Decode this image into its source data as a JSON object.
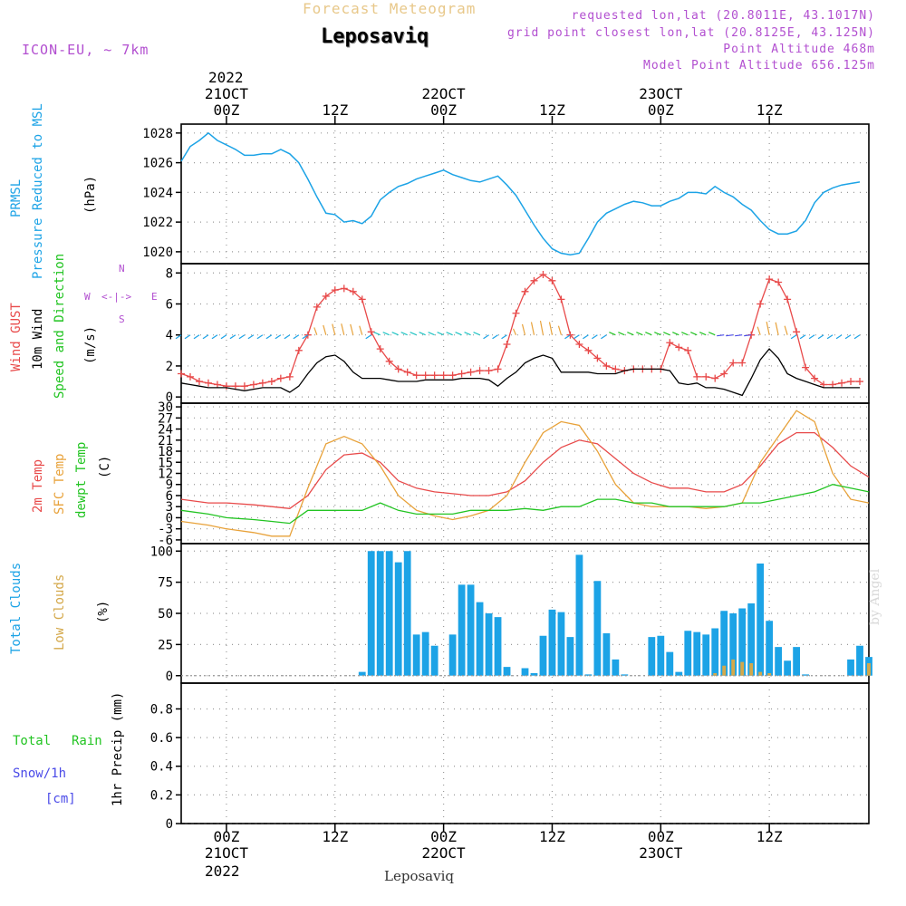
{
  "header": {
    "title_top": "Forecast Meteogram",
    "location": "Leposaviq",
    "model": "ICON-EU, ~ 7km",
    "requested": "requested lon,lat (20.8011E, 43.1017N)",
    "gridpoint": "grid point closest lon,lat (20.8125E, 43.125N)",
    "point_alt": "Point Altitude 468m",
    "model_alt": "Model Point Altitude 656.125m"
  },
  "colors": {
    "pressure": "#1ca3e6",
    "gust": "#e84a4a",
    "wind": "#000000",
    "temp": "#e84a4a",
    "sfc": "#e8a23a",
    "dew": "#22c422",
    "total_cloud": "#1ca3e6",
    "low_cloud": "#d4a84a",
    "rain": "#22c422",
    "snow": "#4a4ae8",
    "violet": "#b24fd0"
  },
  "time_axis": {
    "top_year": "2022",
    "top_labels": [
      {
        "hour": 0,
        "date": "21OCT",
        "time": "00Z"
      },
      {
        "hour": 12,
        "date": "",
        "time": "12Z"
      },
      {
        "hour": 24,
        "date": "22OCT",
        "time": "00Z"
      },
      {
        "hour": 36,
        "date": "",
        "time": "12Z"
      },
      {
        "hour": 48,
        "date": "23OCT",
        "time": "00Z"
      },
      {
        "hour": 60,
        "date": "",
        "time": "12Z"
      }
    ],
    "bottom_year": "2022",
    "bottom_labels": [
      {
        "hour": 0,
        "time": "00Z",
        "date": "21OCT"
      },
      {
        "hour": 12,
        "time": "12Z",
        "date": ""
      },
      {
        "hour": 24,
        "time": "00Z",
        "date": "22OCT"
      },
      {
        "hour": 36,
        "time": "12Z",
        "date": ""
      },
      {
        "hour": 48,
        "time": "00Z",
        "date": "23OCT"
      },
      {
        "hour": 60,
        "time": "12Z",
        "date": ""
      }
    ],
    "footer": "Leposaviq",
    "watermark": "by Angel"
  },
  "labels": {
    "p1": {
      "a": "PRMSL",
      "b": "Pressure Reduced to MSL",
      "unit": "(hPa)"
    },
    "p2": {
      "a": "Wind GUST",
      "b": "10m Wind",
      "c": "Speed and Direction",
      "unit": "(m/s)",
      "compass_n": "N",
      "compass_s": "S",
      "compass_w": "W",
      "compass_e": "E"
    },
    "p3": {
      "a": "2m Temp",
      "b": "SFC Temp",
      "c": "dewpt Temp",
      "unit": "(C)"
    },
    "p4": {
      "a": "Total Clouds",
      "b": "Low Clouds",
      "unit": "(%)"
    },
    "p5": {
      "a": "Total",
      "b": "Rain",
      "c": "Snow/1h",
      "d": "[cm]",
      "e": "1hr Precip (mm)"
    }
  },
  "chart_data": [
    {
      "type": "line",
      "title": "PRMSL Pressure Reduced to MSL",
      "ylabel": "(hPa)",
      "ylim": [
        1019.2,
        1028.6
      ],
      "yticks": [
        1020,
        1022,
        1024,
        1026,
        1028
      ],
      "xlim": [
        -5,
        71
      ],
      "series": [
        {
          "name": "PRMSL",
          "x": [
            -5,
            -4,
            -3,
            -2,
            -1,
            0,
            1,
            2,
            3,
            4,
            5,
            6,
            7,
            8,
            9,
            10,
            11,
            12,
            13,
            14,
            15,
            16,
            17,
            18,
            19,
            20,
            21,
            22,
            23,
            24,
            25,
            26,
            27,
            28,
            29,
            30,
            31,
            32,
            33,
            34,
            35,
            36,
            37,
            38,
            39,
            40,
            41,
            42,
            43,
            44,
            45,
            46,
            47,
            48,
            49,
            50,
            51,
            52,
            53,
            54,
            55,
            56,
            57,
            58,
            59,
            60,
            61,
            62,
            63,
            64,
            65,
            66,
            67,
            68,
            69,
            70
          ],
          "values": [
            1026.1,
            1027.1,
            1027.5,
            1028.0,
            1027.5,
            1027.2,
            1026.9,
            1026.5,
            1026.5,
            1026.6,
            1026.6,
            1026.9,
            1026.6,
            1026.0,
            1024.9,
            1023.7,
            1022.6,
            1022.5,
            1022.0,
            1022.1,
            1021.9,
            1022.4,
            1023.5,
            1024.0,
            1024.4,
            1024.6,
            1024.9,
            1025.1,
            1025.3,
            1025.5,
            1025.2,
            1025.0,
            1024.8,
            1024.7,
            1024.9,
            1025.1,
            1024.5,
            1023.8,
            1022.8,
            1021.8,
            1020.9,
            1020.2,
            1019.9,
            1019.8,
            1019.9,
            1020.9,
            1022.0,
            1022.6,
            1022.9,
            1023.2,
            1023.4,
            1023.3,
            1023.1,
            1023.1,
            1023.4,
            1023.6,
            1024.0,
            1024.0,
            1023.9,
            1024.4,
            1024.0,
            1023.7,
            1023.2,
            1022.8,
            1022.1,
            1021.5,
            1021.2,
            1021.2,
            1021.4,
            1022.1,
            1023.3,
            1024.0,
            1024.3,
            1024.5,
            1024.6,
            1024.7
          ]
        }
      ]
    },
    {
      "type": "line",
      "title": "Wind GUST / 10m Wind Speed and Direction",
      "ylabel": "(m/s)",
      "ylim": [
        -0.4,
        8.6
      ],
      "yticks": [
        0,
        2,
        4,
        6,
        8
      ],
      "xlim": [
        -5,
        71
      ],
      "series": [
        {
          "name": "Wind GUST",
          "x": [
            -5,
            -4,
            -3,
            -2,
            -1,
            0,
            1,
            2,
            3,
            4,
            5,
            6,
            7,
            8,
            9,
            10,
            11,
            12,
            13,
            14,
            15,
            16,
            17,
            18,
            19,
            20,
            21,
            22,
            23,
            24,
            25,
            26,
            27,
            28,
            29,
            30,
            31,
            32,
            33,
            34,
            35,
            36,
            37,
            38,
            39,
            40,
            41,
            42,
            43,
            44,
            45,
            46,
            47,
            48,
            49,
            50,
            51,
            52,
            53,
            54,
            55,
            56,
            57,
            58,
            59,
            60,
            61,
            62,
            63,
            64,
            65,
            66,
            67,
            68,
            69,
            70
          ],
          "values": [
            1.5,
            1.3,
            1.0,
            0.9,
            0.8,
            0.7,
            0.7,
            0.7,
            0.8,
            0.9,
            1.0,
            1.2,
            1.3,
            3.0,
            4.0,
            5.8,
            6.5,
            6.9,
            7.0,
            6.8,
            6.3,
            4.2,
            3.1,
            2.3,
            1.8,
            1.6,
            1.4,
            1.4,
            1.4,
            1.4,
            1.4,
            1.5,
            1.6,
            1.7,
            1.7,
            1.8,
            3.4,
            5.4,
            6.8,
            7.5,
            7.9,
            7.5,
            6.3,
            4.0,
            3.4,
            3.0,
            2.5,
            2.0,
            1.8,
            1.7,
            1.8,
            1.8,
            1.8,
            1.8,
            3.5,
            3.2,
            3.0,
            1.3,
            1.3,
            1.2,
            1.5,
            2.2,
            2.2,
            4.0,
            6.0,
            7.6,
            7.4,
            6.3,
            4.2,
            1.9,
            1.2,
            0.8,
            0.8,
            0.9,
            1.0,
            1.0
          ]
        },
        {
          "name": "10m Wind",
          "x": [
            -5,
            -4,
            -3,
            -2,
            -1,
            0,
            1,
            2,
            3,
            4,
            5,
            6,
            7,
            8,
            9,
            10,
            11,
            12,
            13,
            14,
            15,
            16,
            17,
            18,
            19,
            20,
            21,
            22,
            23,
            24,
            25,
            26,
            27,
            28,
            29,
            30,
            31,
            32,
            33,
            34,
            35,
            36,
            37,
            38,
            39,
            40,
            41,
            42,
            43,
            44,
            45,
            46,
            47,
            48,
            49,
            50,
            51,
            52,
            53,
            54,
            55,
            56,
            57,
            58,
            59,
            60,
            61,
            62,
            63,
            64,
            65,
            66,
            67,
            68,
            69,
            70
          ],
          "values": [
            0.9,
            0.8,
            0.7,
            0.6,
            0.6,
            0.6,
            0.5,
            0.4,
            0.5,
            0.6,
            0.6,
            0.6,
            0.3,
            0.7,
            1.5,
            2.2,
            2.6,
            2.7,
            2.3,
            1.6,
            1.2,
            1.2,
            1.2,
            1.1,
            1.0,
            1.0,
            1.0,
            1.1,
            1.1,
            1.1,
            1.1,
            1.2,
            1.2,
            1.2,
            1.1,
            0.7,
            1.2,
            1.6,
            2.2,
            2.5,
            2.7,
            2.5,
            1.6,
            1.6,
            1.6,
            1.6,
            1.5,
            1.5,
            1.5,
            1.7,
            1.8,
            1.8,
            1.8,
            1.8,
            1.7,
            0.9,
            0.8,
            0.9,
            0.6,
            0.6,
            0.5,
            0.3,
            0.1,
            1.2,
            2.4,
            3.1,
            2.5,
            1.5,
            1.2,
            1.0,
            0.8,
            0.6,
            0.6,
            0.6,
            0.6,
            0.6
          ]
        }
      ]
    },
    {
      "type": "line",
      "title": "2m Temp / SFC Temp / dewpt Temp",
      "ylabel": "(C)",
      "ylim": [
        -7,
        31
      ],
      "yticks": [
        -6,
        -3,
        0,
        3,
        6,
        9,
        12,
        15,
        18,
        21,
        24,
        27,
        30
      ],
      "xlim": [
        -5,
        71
      ],
      "series": [
        {
          "name": "2m Temp",
          "x": [
            -5,
            -2,
            0,
            3,
            5,
            7,
            9,
            11,
            13,
            15,
            17,
            19,
            21,
            23,
            25,
            27,
            29,
            31,
            33,
            35,
            37,
            39,
            41,
            43,
            45,
            47,
            49,
            51,
            53,
            55,
            57,
            59,
            61,
            63,
            65,
            67,
            69,
            71
          ],
          "values": [
            5,
            4,
            4,
            3.5,
            3,
            2.5,
            6,
            13,
            17,
            17.5,
            15,
            10,
            8,
            7,
            6.5,
            6,
            6,
            7,
            10,
            15,
            19,
            21,
            20,
            16,
            12,
            9.5,
            8,
            8,
            7,
            7,
            9,
            14,
            20,
            23,
            23,
            19,
            14,
            11
          ]
        },
        {
          "name": "SFC Temp",
          "x": [
            -5,
            -2,
            0,
            3,
            5,
            7,
            9,
            11,
            13,
            15,
            17,
            19,
            21,
            23,
            25,
            27,
            29,
            31,
            33,
            35,
            37,
            39,
            41,
            43,
            45,
            47,
            49,
            51,
            53,
            55,
            57,
            59,
            61,
            63,
            65,
            67,
            69,
            71
          ],
          "values": [
            -1,
            -2,
            -3,
            -4,
            -5,
            -5,
            8,
            20,
            22,
            20,
            14,
            6,
            2,
            0.5,
            -0.5,
            0.5,
            2,
            6,
            15,
            23,
            26,
            25,
            18,
            9,
            4,
            3,
            3,
            3,
            2.5,
            3,
            4,
            15,
            22,
            29,
            26,
            12,
            5,
            4
          ]
        },
        {
          "name": "dewpt Temp",
          "x": [
            -5,
            -2,
            0,
            3,
            5,
            7,
            9,
            11,
            13,
            15,
            17,
            19,
            21,
            23,
            25,
            27,
            29,
            31,
            33,
            35,
            37,
            39,
            41,
            43,
            45,
            47,
            49,
            51,
            53,
            55,
            57,
            59,
            61,
            63,
            65,
            67,
            69,
            71
          ],
          "values": [
            2,
            1,
            0,
            -0.5,
            -1,
            -1.5,
            2,
            2,
            2,
            2,
            4,
            2,
            1,
            1,
            1,
            2,
            2,
            2,
            2.5,
            2,
            3,
            3,
            5,
            5,
            4,
            4,
            3,
            3,
            3,
            3,
            4,
            4,
            5,
            6,
            7,
            9,
            8,
            7
          ]
        }
      ]
    },
    {
      "type": "bar",
      "title": "Total Clouds / Low Clouds",
      "ylabel": "(%)",
      "ylim": [
        -6,
        106
      ],
      "yticks": [
        0,
        25,
        50,
        75,
        100
      ],
      "xlim": [
        -5,
        71
      ],
      "series": [
        {
          "name": "Total Clouds",
          "x": [
            15,
            16,
            17,
            18,
            19,
            20,
            21,
            22,
            23,
            25,
            26,
            27,
            28,
            29,
            30,
            31,
            33,
            34,
            35,
            36,
            37,
            38,
            39,
            40,
            41,
            42,
            43,
            44,
            47,
            48,
            49,
            50,
            51,
            52,
            53,
            54,
            55,
            56,
            57,
            58,
            59,
            60,
            61,
            62,
            63,
            64,
            69,
            70,
            71
          ],
          "values": [
            3,
            100,
            100,
            100,
            91,
            100,
            33,
            35,
            24,
            33,
            73,
            73,
            59,
            50,
            47,
            7,
            6,
            2,
            32,
            53,
            51,
            31,
            97,
            1,
            76,
            34,
            13,
            1,
            31,
            32,
            19,
            3,
            36,
            35,
            33,
            38,
            52,
            50,
            54,
            58,
            90,
            44,
            23,
            12,
            23,
            1,
            13,
            24,
            15
          ]
        },
        {
          "name": "Low Clouds",
          "x": [
            54,
            55,
            56,
            57,
            58,
            59,
            60,
            71
          ],
          "values": [
            2,
            8,
            13,
            11,
            10,
            3,
            2,
            10
          ]
        }
      ]
    },
    {
      "type": "bar",
      "title": "Total Rain / Snow 1h",
      "ylabel": "1hr Precip (mm)",
      "ylim": [
        0,
        0.98
      ],
      "yticks": [
        0,
        0.2,
        0.4,
        0.6,
        0.8
      ],
      "xlim": [
        -5,
        71
      ],
      "series": [
        {
          "name": "Rain",
          "x": [],
          "values": []
        },
        {
          "name": "Snow",
          "x": [],
          "values": []
        }
      ]
    }
  ]
}
